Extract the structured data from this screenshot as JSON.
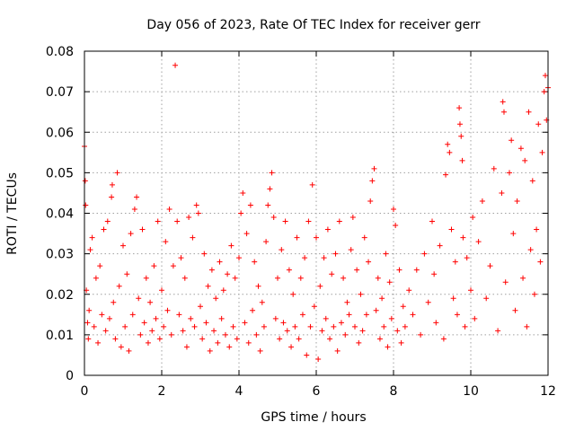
{
  "chart_data": {
    "type": "scatter",
    "title": "Day 056 of 2023, Rate Of TEC Index for receiver gerr",
    "xlabel": "GPS time / hours",
    "ylabel": "ROTI / TECUs",
    "xlim": [
      0,
      12
    ],
    "ylim": [
      0,
      0.08
    ],
    "x_ticks": [
      0,
      2,
      4,
      6,
      8,
      10,
      12
    ],
    "x_tick_labels": [
      "0",
      "2",
      "4",
      "6",
      "8",
      "10",
      "12"
    ],
    "y_ticks": [
      0,
      0.01,
      0.02,
      0.03,
      0.04,
      0.05,
      0.06,
      0.07,
      0.08
    ],
    "y_tick_labels": [
      "0",
      "0.01",
      "0.02",
      "0.03",
      "0.04",
      "0.05",
      "0.06",
      "0.07",
      "0.08"
    ],
    "grid": true,
    "marker": "+",
    "series": [
      {
        "name": "ROTI",
        "color": "#ff0000",
        "points": [
          [
            0.0,
            0.0565
          ],
          [
            0.02,
            0.048
          ],
          [
            0.03,
            0.042
          ],
          [
            0.05,
            0.021
          ],
          [
            0.08,
            0.013
          ],
          [
            0.1,
            0.009
          ],
          [
            0.12,
            0.016
          ],
          [
            0.15,
            0.031
          ],
          [
            0.2,
            0.034
          ],
          [
            0.25,
            0.012
          ],
          [
            0.3,
            0.024
          ],
          [
            0.35,
            0.008
          ],
          [
            0.4,
            0.027
          ],
          [
            0.45,
            0.015
          ],
          [
            0.5,
            0.036
          ],
          [
            0.55,
            0.011
          ],
          [
            0.6,
            0.038
          ],
          [
            0.65,
            0.014
          ],
          [
            0.7,
            0.044
          ],
          [
            0.72,
            0.047
          ],
          [
            0.75,
            0.018
          ],
          [
            0.8,
            0.009
          ],
          [
            0.85,
            0.05
          ],
          [
            0.9,
            0.022
          ],
          [
            0.95,
            0.007
          ],
          [
            1.0,
            0.032
          ],
          [
            1.05,
            0.012
          ],
          [
            1.1,
            0.025
          ],
          [
            1.15,
            0.006
          ],
          [
            1.2,
            0.035
          ],
          [
            1.25,
            0.015
          ],
          [
            1.3,
            0.041
          ],
          [
            1.35,
            0.044
          ],
          [
            1.4,
            0.019
          ],
          [
            1.45,
            0.01
          ],
          [
            1.5,
            0.036
          ],
          [
            1.55,
            0.013
          ],
          [
            1.6,
            0.024
          ],
          [
            1.65,
            0.008
          ],
          [
            1.7,
            0.018
          ],
          [
            1.75,
            0.011
          ],
          [
            1.8,
            0.027
          ],
          [
            1.85,
            0.014
          ],
          [
            1.9,
            0.038
          ],
          [
            1.95,
            0.009
          ],
          [
            2.0,
            0.021
          ],
          [
            2.05,
            0.012
          ],
          [
            2.1,
            0.033
          ],
          [
            2.15,
            0.016
          ],
          [
            2.2,
            0.041
          ],
          [
            2.25,
            0.01
          ],
          [
            2.3,
            0.027
          ],
          [
            2.35,
            0.0765
          ],
          [
            2.4,
            0.038
          ],
          [
            2.45,
            0.015
          ],
          [
            2.5,
            0.029
          ],
          [
            2.55,
            0.011
          ],
          [
            2.6,
            0.024
          ],
          [
            2.65,
            0.007
          ],
          [
            2.7,
            0.039
          ],
          [
            2.75,
            0.014
          ],
          [
            2.8,
            0.034
          ],
          [
            2.85,
            0.012
          ],
          [
            2.9,
            0.042
          ],
          [
            2.95,
            0.04
          ],
          [
            3.0,
            0.017
          ],
          [
            3.05,
            0.009
          ],
          [
            3.1,
            0.03
          ],
          [
            3.15,
            0.013
          ],
          [
            3.2,
            0.022
          ],
          [
            3.25,
            0.006
          ],
          [
            3.3,
            0.026
          ],
          [
            3.35,
            0.011
          ],
          [
            3.4,
            0.019
          ],
          [
            3.45,
            0.008
          ],
          [
            3.5,
            0.028
          ],
          [
            3.55,
            0.014
          ],
          [
            3.6,
            0.021
          ],
          [
            3.65,
            0.01
          ],
          [
            3.7,
            0.025
          ],
          [
            3.75,
            0.007
          ],
          [
            3.8,
            0.032
          ],
          [
            3.85,
            0.012
          ],
          [
            3.9,
            0.024
          ],
          [
            3.95,
            0.009
          ],
          [
            4.0,
            0.029
          ],
          [
            4.05,
            0.04
          ],
          [
            4.1,
            0.045
          ],
          [
            4.15,
            0.013
          ],
          [
            4.2,
            0.035
          ],
          [
            4.25,
            0.008
          ],
          [
            4.3,
            0.042
          ],
          [
            4.35,
            0.016
          ],
          [
            4.4,
            0.028
          ],
          [
            4.45,
            0.01
          ],
          [
            4.5,
            0.022
          ],
          [
            4.55,
            0.006
          ],
          [
            4.6,
            0.018
          ],
          [
            4.65,
            0.012
          ],
          [
            4.7,
            0.033
          ],
          [
            4.75,
            0.042
          ],
          [
            4.8,
            0.046
          ],
          [
            4.85,
            0.05
          ],
          [
            4.9,
            0.039
          ],
          [
            4.95,
            0.014
          ],
          [
            5.0,
            0.024
          ],
          [
            5.05,
            0.009
          ],
          [
            5.1,
            0.031
          ],
          [
            5.15,
            0.013
          ],
          [
            5.2,
            0.038
          ],
          [
            5.25,
            0.011
          ],
          [
            5.3,
            0.026
          ],
          [
            5.35,
            0.007
          ],
          [
            5.4,
            0.02
          ],
          [
            5.45,
            0.012
          ],
          [
            5.5,
            0.034
          ],
          [
            5.55,
            0.009
          ],
          [
            5.6,
            0.024
          ],
          [
            5.65,
            0.015
          ],
          [
            5.7,
            0.029
          ],
          [
            5.75,
            0.005
          ],
          [
            5.8,
            0.038
          ],
          [
            5.85,
            0.012
          ],
          [
            5.9,
            0.047
          ],
          [
            5.95,
            0.017
          ],
          [
            6.0,
            0.034
          ],
          [
            6.05,
            0.004
          ],
          [
            6.1,
            0.022
          ],
          [
            6.15,
            0.011
          ],
          [
            6.2,
            0.029
          ],
          [
            6.25,
            0.014
          ],
          [
            6.3,
            0.036
          ],
          [
            6.35,
            0.009
          ],
          [
            6.4,
            0.025
          ],
          [
            6.45,
            0.012
          ],
          [
            6.5,
            0.03
          ],
          [
            6.55,
            0.006
          ],
          [
            6.6,
            0.038
          ],
          [
            6.65,
            0.013
          ],
          [
            6.7,
            0.024
          ],
          [
            6.75,
            0.01
          ],
          [
            6.8,
            0.018
          ],
          [
            6.85,
            0.015
          ],
          [
            6.9,
            0.031
          ],
          [
            6.95,
            0.039
          ],
          [
            7.0,
            0.012
          ],
          [
            7.05,
            0.026
          ],
          [
            7.1,
            0.008
          ],
          [
            7.15,
            0.02
          ],
          [
            7.2,
            0.011
          ],
          [
            7.25,
            0.034
          ],
          [
            7.3,
            0.015
          ],
          [
            7.35,
            0.028
          ],
          [
            7.4,
            0.043
          ],
          [
            7.45,
            0.048
          ],
          [
            7.5,
            0.051
          ],
          [
            7.55,
            0.016
          ],
          [
            7.6,
            0.024
          ],
          [
            7.65,
            0.009
          ],
          [
            7.7,
            0.019
          ],
          [
            7.75,
            0.012
          ],
          [
            7.8,
            0.03
          ],
          [
            7.85,
            0.007
          ],
          [
            7.9,
            0.023
          ],
          [
            7.95,
            0.014
          ],
          [
            8.0,
            0.041
          ],
          [
            8.05,
            0.037
          ],
          [
            8.1,
            0.011
          ],
          [
            8.15,
            0.026
          ],
          [
            8.2,
            0.008
          ],
          [
            8.25,
            0.017
          ],
          [
            8.3,
            0.012
          ],
          [
            8.4,
            0.021
          ],
          [
            8.5,
            0.015
          ],
          [
            8.6,
            0.026
          ],
          [
            8.7,
            0.01
          ],
          [
            8.8,
            0.03
          ],
          [
            8.9,
            0.018
          ],
          [
            9.0,
            0.038
          ],
          [
            9.05,
            0.025
          ],
          [
            9.1,
            0.013
          ],
          [
            9.2,
            0.032
          ],
          [
            9.3,
            0.009
          ],
          [
            9.35,
            0.0495
          ],
          [
            9.4,
            0.057
          ],
          [
            9.45,
            0.055
          ],
          [
            9.5,
            0.036
          ],
          [
            9.55,
            0.019
          ],
          [
            9.6,
            0.028
          ],
          [
            9.65,
            0.015
          ],
          [
            9.7,
            0.066
          ],
          [
            9.72,
            0.062
          ],
          [
            9.75,
            0.059
          ],
          [
            9.78,
            0.053
          ],
          [
            9.8,
            0.034
          ],
          [
            9.85,
            0.012
          ],
          [
            9.9,
            0.029
          ],
          [
            10.0,
            0.021
          ],
          [
            10.05,
            0.039
          ],
          [
            10.1,
            0.014
          ],
          [
            10.2,
            0.033
          ],
          [
            10.3,
            0.043
          ],
          [
            10.4,
            0.019
          ],
          [
            10.5,
            0.027
          ],
          [
            10.6,
            0.051
          ],
          [
            10.7,
            0.011
          ],
          [
            10.8,
            0.045
          ],
          [
            10.83,
            0.0675
          ],
          [
            10.86,
            0.065
          ],
          [
            10.9,
            0.023
          ],
          [
            11.0,
            0.05
          ],
          [
            11.05,
            0.058
          ],
          [
            11.1,
            0.035
          ],
          [
            11.15,
            0.016
          ],
          [
            11.2,
            0.043
          ],
          [
            11.3,
            0.056
          ],
          [
            11.35,
            0.024
          ],
          [
            11.4,
            0.053
          ],
          [
            11.45,
            0.012
          ],
          [
            11.5,
            0.065
          ],
          [
            11.55,
            0.031
          ],
          [
            11.6,
            0.048
          ],
          [
            11.65,
            0.02
          ],
          [
            11.7,
            0.036
          ],
          [
            11.75,
            0.062
          ],
          [
            11.8,
            0.028
          ],
          [
            11.85,
            0.055
          ],
          [
            11.9,
            0.07
          ],
          [
            11.93,
            0.074
          ],
          [
            11.96,
            0.063
          ],
          [
            12.0,
            0.071
          ]
        ]
      }
    ]
  }
}
